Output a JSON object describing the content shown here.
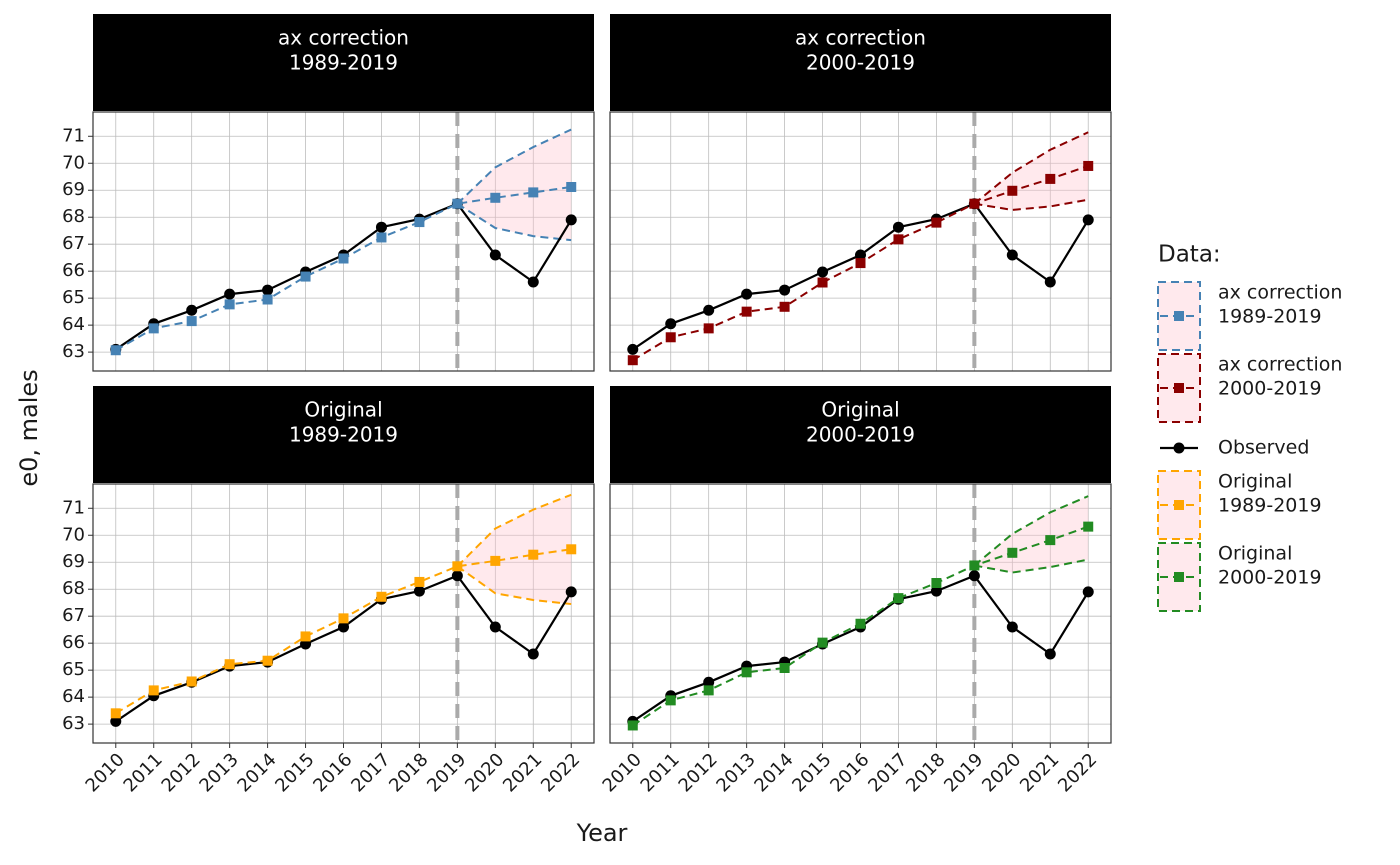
{
  "chart_data": {
    "type": "line",
    "xlabel": "Year",
    "ylabel": "e0, males",
    "x": [
      2010,
      2011,
      2012,
      2013,
      2014,
      2015,
      2016,
      2017,
      2018,
      2019,
      2020,
      2021,
      2022
    ],
    "xlim": [
      2009.4,
      2022.6
    ],
    "xticks": [
      2010,
      2011,
      2012,
      2013,
      2014,
      2015,
      2016,
      2017,
      2018,
      2019,
      2020,
      2021,
      2022
    ],
    "ylim": [
      62.3,
      71.9
    ],
    "yticks": [
      63,
      64,
      65,
      66,
      67,
      68,
      69,
      70,
      71
    ],
    "grid": true,
    "vline": 2019,
    "band_color": "#ffc0cb",
    "observed_color": "#000000",
    "panels": [
      {
        "title": "ax correction",
        "subtitle": "1989-2019",
        "observed": [
          63.1,
          64.05,
          64.55,
          65.15,
          65.3,
          65.97,
          66.6,
          67.63,
          67.93,
          68.5,
          66.6,
          65.6,
          67.9
        ],
        "forecast": {
          "color": "#4682b4",
          "values": [
            63.07,
            63.88,
            64.15,
            64.77,
            64.95,
            65.8,
            66.47,
            67.25,
            67.82,
            68.5,
            68.72,
            68.92,
            69.12
          ],
          "upper": [
            null,
            null,
            null,
            null,
            null,
            null,
            null,
            null,
            null,
            68.5,
            69.85,
            70.6,
            71.25
          ],
          "lower": [
            null,
            null,
            null,
            null,
            null,
            null,
            null,
            null,
            null,
            68.5,
            67.6,
            67.3,
            67.15
          ]
        }
      },
      {
        "title": "ax correction",
        "subtitle": "2000-2019",
        "observed": [
          63.1,
          64.05,
          64.55,
          65.15,
          65.3,
          65.97,
          66.6,
          67.63,
          67.93,
          68.5,
          66.6,
          65.6,
          67.9
        ],
        "forecast": {
          "color": "#8b0000",
          "values": [
            62.7,
            63.55,
            63.88,
            64.5,
            64.68,
            65.58,
            66.3,
            67.18,
            67.8,
            68.5,
            68.98,
            69.42,
            69.9
          ],
          "upper": [
            null,
            null,
            null,
            null,
            null,
            null,
            null,
            null,
            null,
            68.5,
            69.65,
            70.5,
            71.15
          ],
          "lower": [
            null,
            null,
            null,
            null,
            null,
            null,
            null,
            null,
            null,
            68.5,
            68.27,
            68.4,
            68.65
          ]
        }
      },
      {
        "title": "Original",
        "subtitle": "1989-2019",
        "observed": [
          63.1,
          64.05,
          64.55,
          65.15,
          65.3,
          65.97,
          66.6,
          67.63,
          67.93,
          68.5,
          66.6,
          65.6,
          67.9
        ],
        "forecast": {
          "color": "#ffa500",
          "values": [
            63.4,
            64.25,
            64.58,
            65.22,
            65.35,
            66.25,
            66.92,
            67.72,
            68.27,
            68.85,
            69.05,
            69.28,
            69.48
          ],
          "upper": [
            null,
            null,
            null,
            null,
            null,
            null,
            null,
            null,
            null,
            68.85,
            70.25,
            70.95,
            71.5
          ],
          "lower": [
            null,
            null,
            null,
            null,
            null,
            null,
            null,
            null,
            null,
            68.85,
            67.85,
            67.6,
            67.45
          ]
        }
      },
      {
        "title": "Original",
        "subtitle": "2000-2019",
        "observed": [
          63.1,
          64.05,
          64.55,
          65.15,
          65.3,
          65.97,
          66.6,
          67.63,
          67.93,
          68.5,
          66.6,
          65.6,
          67.9
        ],
        "forecast": {
          "color": "#228b22",
          "values": [
            62.95,
            63.88,
            64.25,
            64.92,
            65.08,
            66.02,
            66.72,
            67.67,
            68.23,
            68.88,
            69.35,
            69.82,
            70.32
          ],
          "upper": [
            null,
            null,
            null,
            null,
            null,
            null,
            null,
            null,
            null,
            68.88,
            70.05,
            70.85,
            71.45
          ],
          "lower": [
            null,
            null,
            null,
            null,
            null,
            null,
            null,
            null,
            null,
            68.88,
            68.62,
            68.82,
            69.1
          ]
        }
      }
    ],
    "legend": {
      "title": "Data:",
      "entries": [
        {
          "name": "ax correction",
          "period": "1989-2019",
          "color": "#4682b4"
        },
        {
          "name": "ax correction",
          "period": "2000-2019",
          "color": "#8b0000"
        },
        {
          "name": "Observed",
          "color": "#000000"
        },
        {
          "name": "Original",
          "period": "1989-2019",
          "color": "#ffa500"
        },
        {
          "name": "Original",
          "period": "2000-2019",
          "color": "#228b22"
        }
      ]
    }
  }
}
